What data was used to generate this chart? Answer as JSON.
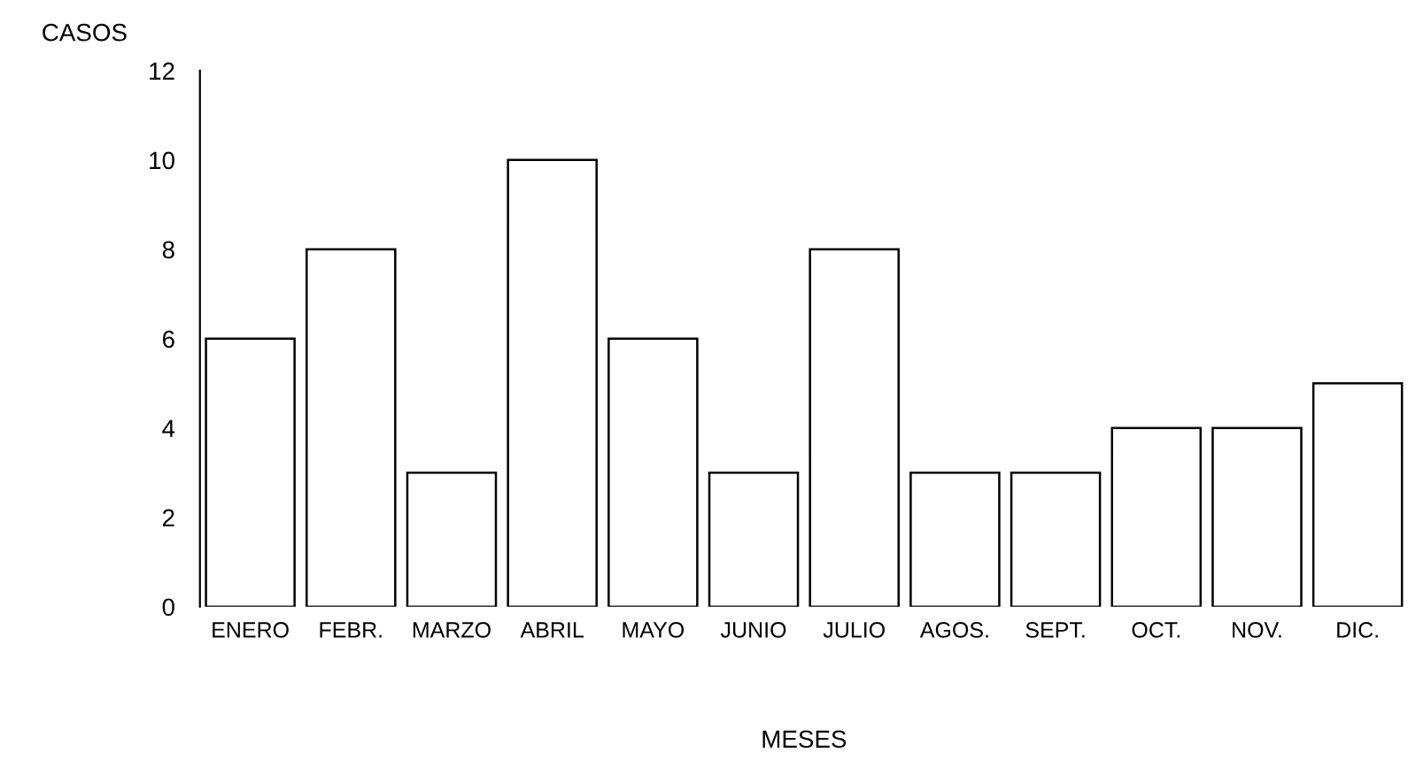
{
  "chart_data": {
    "type": "bar",
    "xlabel": "MESES",
    "ylabel": "CASOS",
    "categories": [
      "ENERO",
      "FEBR.",
      "MARZO",
      "ABRIL",
      "MAYO",
      "JUNIO",
      "JULIO",
      "AGOS.",
      "SEPT.",
      "OCT.",
      "NOV.",
      "DIC."
    ],
    "values": [
      6,
      8,
      3,
      10,
      6,
      3,
      8,
      3,
      3,
      4,
      4,
      5
    ],
    "color": "#ffffff",
    "ylim": [
      0,
      12
    ],
    "yticks": [
      0,
      2,
      4,
      6,
      8,
      10,
      12
    ],
    "grid": false,
    "legend": false
  }
}
